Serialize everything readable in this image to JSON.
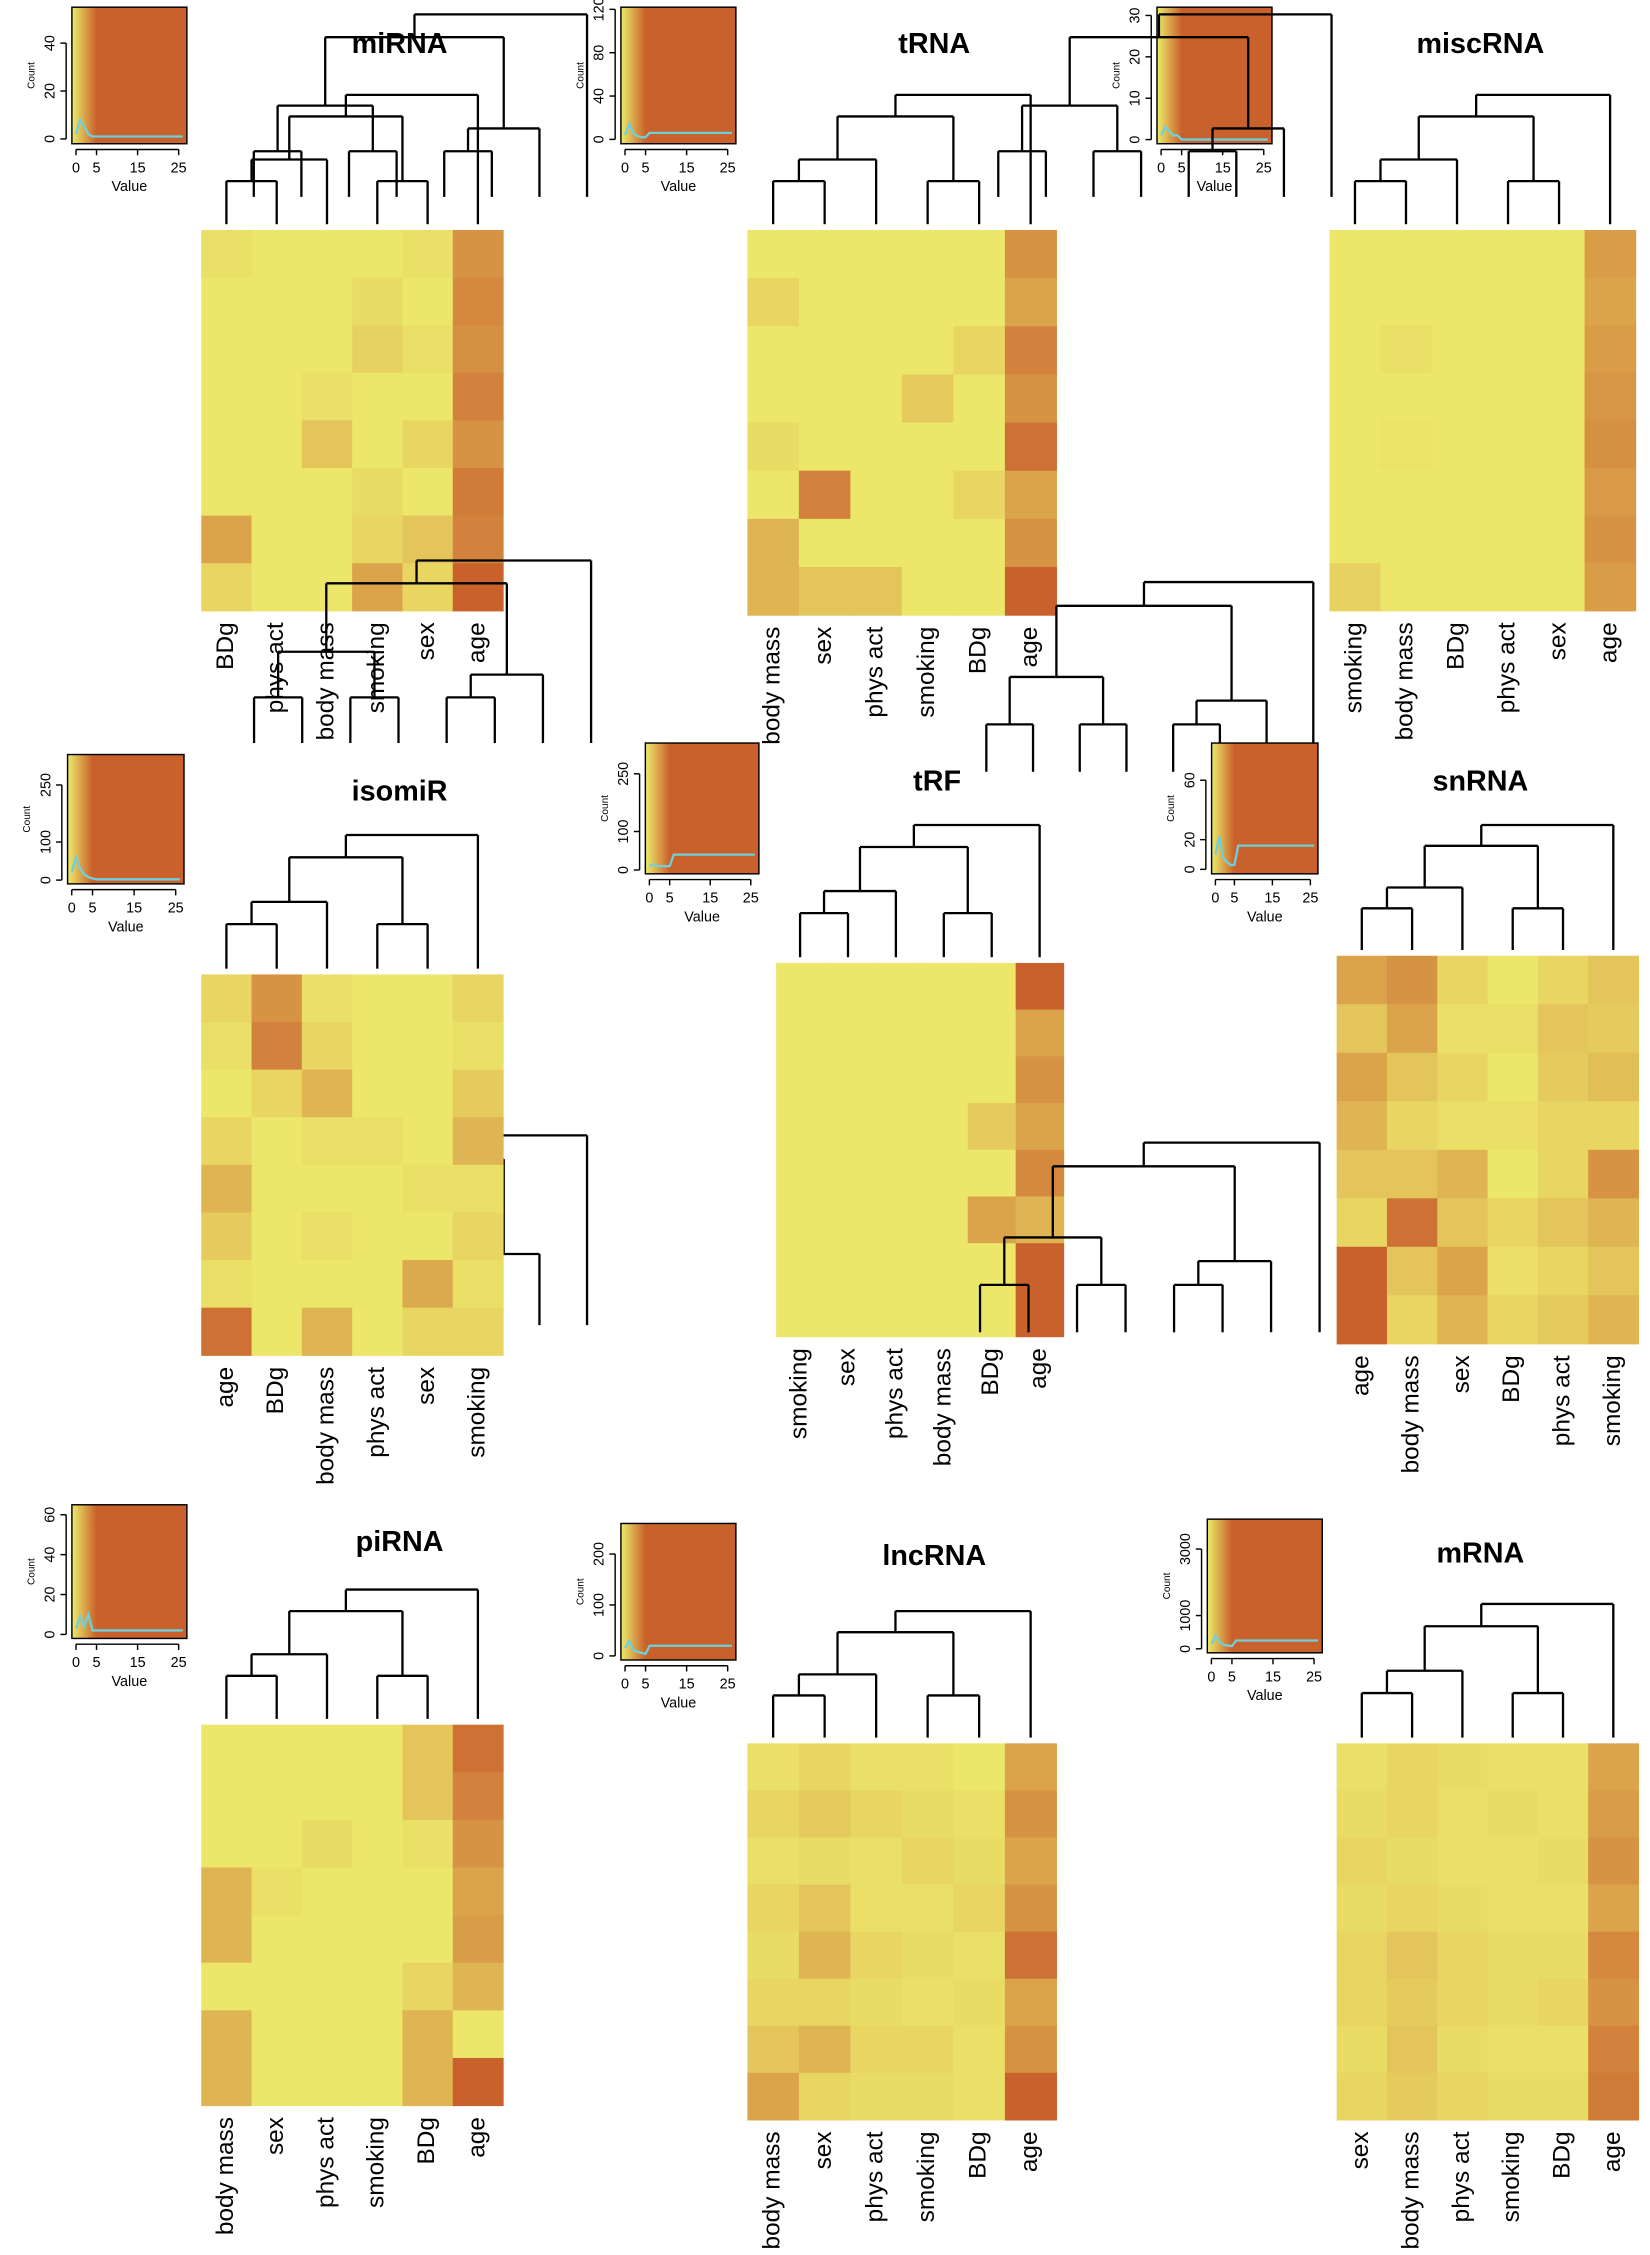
{
  "chart_data": [
    {
      "type": "heatmap",
      "title": "miRNA",
      "columns": [
        "BDg",
        "phys act",
        "body mass",
        "smoking",
        "sex",
        "age"
      ],
      "values": [
        [
          1.2,
          1,
          1,
          1,
          1.2,
          3.5
        ],
        [
          1,
          1,
          1,
          1.3,
          1,
          3.8
        ],
        [
          1,
          1,
          1,
          1.6,
          1.2,
          3.6
        ],
        [
          1,
          1,
          1.2,
          1,
          1,
          4
        ],
        [
          1,
          1,
          2,
          1,
          1.5,
          3.5
        ],
        [
          1,
          1,
          1,
          1.3,
          1,
          4.2
        ],
        [
          3,
          1,
          1,
          1.5,
          2,
          4
        ],
        [
          1.5,
          1,
          1,
          3,
          1.5,
          5
        ]
      ],
      "key": {
        "xlabel": "Value",
        "ylabel": "Count",
        "xlim": [
          -1,
          27
        ],
        "xticks": [
          0,
          5,
          15,
          25
        ],
        "ylim": [
          -2,
          55
        ],
        "yticks": [
          0,
          20,
          40
        ],
        "x": [
          0,
          1,
          2,
          3,
          4,
          5,
          6,
          26
        ],
        "values": [
          2,
          8,
          5,
          2,
          1,
          1,
          1,
          1
        ],
        "color": "#6fd0dc"
      }
    },
    {
      "type": "heatmap",
      "title": "tRNA",
      "columns": [
        "body mass",
        "sex",
        "phys act",
        "smoking",
        "BDg",
        "age"
      ],
      "values": [
        [
          1,
          1,
          1,
          1,
          1,
          3.5
        ],
        [
          1.5,
          1,
          1,
          1,
          1,
          3
        ],
        [
          1,
          1,
          1,
          1,
          1.5,
          4
        ],
        [
          1,
          1,
          1,
          1.8,
          1,
          3.5
        ],
        [
          1.3,
          1,
          1,
          1,
          1,
          4.5
        ],
        [
          1,
          4,
          1,
          1,
          1.5,
          3
        ],
        [
          2.5,
          1,
          1,
          1,
          1,
          3.5
        ],
        [
          2.5,
          2,
          2,
          1,
          1,
          5
        ]
      ],
      "key": {
        "xlabel": "Value",
        "ylabel": "Count",
        "xlim": [
          -1,
          27
        ],
        "xticks": [
          0,
          5,
          15,
          25
        ],
        "ylim": [
          -4,
          122
        ],
        "yticks": [
          0,
          40,
          80,
          120
        ],
        "x": [
          0,
          1,
          2,
          3,
          4,
          5,
          6,
          26
        ],
        "values": [
          4,
          14,
          6,
          3,
          2,
          2,
          6,
          6
        ],
        "color": "#6fd0dc"
      }
    },
    {
      "type": "heatmap",
      "title": "miscRNA",
      "columns": [
        "smoking",
        "body mass",
        "BDg",
        "phys act",
        "sex",
        "age"
      ],
      "values": [
        [
          1,
          1,
          1,
          1,
          1,
          3.2
        ],
        [
          1,
          1,
          1,
          1,
          1,
          3
        ],
        [
          1,
          1.2,
          1,
          1,
          1,
          3.2
        ],
        [
          1,
          1,
          1,
          1,
          1,
          3.4
        ],
        [
          1,
          1.1,
          1,
          1,
          1,
          3.6
        ],
        [
          1,
          1,
          1,
          1,
          1,
          3.3
        ],
        [
          1,
          1,
          1,
          1,
          1,
          3.5
        ],
        [
          1.6,
          1,
          1,
          1,
          1,
          3.2
        ]
      ],
      "key": {
        "xlabel": "Value",
        "ylabel": "Count",
        "xlim": [
          -1,
          27
        ],
        "xticks": [
          0,
          5,
          15,
          25
        ],
        "ylim": [
          -1,
          32
        ],
        "yticks": [
          0,
          10,
          20,
          30
        ],
        "x": [
          0,
          1,
          2,
          3,
          4,
          5,
          6,
          26
        ],
        "values": [
          1,
          3,
          2,
          1,
          1,
          0,
          0,
          0
        ],
        "color": "#6fd0dc"
      }
    },
    {
      "type": "heatmap",
      "title": "isomiR",
      "columns": [
        "age",
        "BDg",
        "body mass",
        "phys act",
        "sex",
        "smoking"
      ],
      "values": [
        [
          1.5,
          3.5,
          1.2,
          1,
          1,
          1.5
        ],
        [
          1.2,
          4,
          1.5,
          1,
          1,
          1.2
        ],
        [
          1,
          1.5,
          2.5,
          1,
          1,
          1.8
        ],
        [
          1.5,
          1,
          1.2,
          1.2,
          1,
          2.5
        ],
        [
          2.5,
          1,
          1,
          1,
          1.2,
          1.2
        ],
        [
          1.8,
          1,
          1.2,
          1,
          1,
          1.5
        ],
        [
          1.2,
          1,
          1,
          1,
          2.8,
          1.2
        ],
        [
          4.5,
          1,
          2.5,
          1,
          1.5,
          1.5
        ]
      ],
      "key": {
        "xlabel": "Value",
        "ylabel": "Count",
        "xlim": [
          -1,
          27
        ],
        "xticks": [
          0,
          5,
          15,
          25
        ],
        "ylim": [
          -10,
          330
        ],
        "yticks": [
          0,
          100,
          250
        ],
        "x": [
          0,
          1,
          2,
          3,
          4,
          5,
          6,
          26
        ],
        "values": [
          20,
          60,
          30,
          15,
          8,
          4,
          2,
          2
        ],
        "color": "#6fd0dc"
      }
    },
    {
      "type": "heatmap",
      "title": "tRF",
      "columns": [
        "smoking",
        "sex",
        "phys act",
        "body mass",
        "BDg",
        "age"
      ],
      "values": [
        [
          1,
          1,
          1,
          1,
          1,
          5
        ],
        [
          1,
          1,
          1,
          1,
          1,
          3
        ],
        [
          1,
          1,
          1,
          1,
          1,
          3.5
        ],
        [
          1,
          1,
          1,
          1,
          1.8,
          3
        ],
        [
          1,
          1,
          1,
          1,
          1,
          3.8
        ],
        [
          1,
          1,
          1,
          1,
          3,
          2.5
        ],
        [
          1,
          1,
          1,
          1,
          1,
          5
        ],
        [
          1,
          1,
          1,
          1,
          1,
          5
        ]
      ],
      "key": {
        "xlabel": "Value",
        "ylabel": "Count",
        "xlim": [
          -1,
          27
        ],
        "xticks": [
          0,
          5,
          15,
          25
        ],
        "ylim": [
          -10,
          330
        ],
        "yticks": [
          0,
          100,
          250
        ],
        "x": [
          0,
          1,
          2,
          3,
          4,
          5,
          6,
          26
        ],
        "values": [
          10,
          15,
          10,
          10,
          10,
          10,
          40,
          40
        ],
        "color": "#6fd0dc"
      }
    },
    {
      "type": "heatmap",
      "title": "snRNA",
      "columns": [
        "age",
        "body mass",
        "sex",
        "BDg",
        "phys act",
        "smoking"
      ],
      "values": [
        [
          3,
          3.5,
          1.5,
          1,
          1.5,
          2
        ],
        [
          2,
          3,
          1.2,
          1.2,
          2,
          1.8
        ],
        [
          3,
          2,
          1.5,
          1,
          1.8,
          2.2
        ],
        [
          2.5,
          1.5,
          1.2,
          1.2,
          1.5,
          1.5
        ],
        [
          2,
          2,
          2.5,
          1,
          1.5,
          3.5
        ],
        [
          1.5,
          4.5,
          2,
          1.5,
          2,
          2.5
        ],
        [
          5,
          2,
          3,
          1.2,
          1.5,
          2
        ],
        [
          5,
          1.5,
          2.5,
          1.5,
          1.8,
          2.5
        ]
      ],
      "key": {
        "xlabel": "Value",
        "ylabel": "Count",
        "xlim": [
          -1,
          27
        ],
        "xticks": [
          0,
          5,
          15,
          25
        ],
        "ylim": [
          -3,
          85
        ],
        "yticks": [
          0,
          20,
          60
        ],
        "x": [
          0,
          1,
          2,
          3,
          4,
          5,
          6,
          26
        ],
        "values": [
          10,
          22,
          8,
          5,
          3,
          3,
          16,
          16
        ],
        "color": "#6fd0dc"
      }
    },
    {
      "type": "heatmap",
      "title": "piRNA",
      "columns": [
        "body mass",
        "sex",
        "phys act",
        "smoking",
        "BDg",
        "age"
      ],
      "values": [
        [
          1,
          1,
          1,
          1,
          2,
          4.5
        ],
        [
          1,
          1,
          1,
          1,
          2,
          4
        ],
        [
          1,
          1,
          1.3,
          1,
          1.2,
          3.5
        ],
        [
          2.5,
          1.2,
          1,
          1,
          1,
          3
        ],
        [
          2.5,
          1,
          1,
          1,
          1,
          3.2
        ],
        [
          1,
          1,
          1,
          1,
          1.5,
          2.5
        ],
        [
          2.5,
          1,
          1,
          1,
          2.5,
          1
        ],
        [
          2.5,
          1,
          1,
          1,
          2.5,
          5
        ]
      ],
      "key": {
        "xlabel": "Value",
        "ylabel": "Count",
        "xlim": [
          -1,
          27
        ],
        "xticks": [
          0,
          5,
          15,
          25
        ],
        "ylim": [
          -2,
          65
        ],
        "yticks": [
          0,
          20,
          40,
          60
        ],
        "x": [
          0,
          1,
          2,
          3,
          4,
          5,
          6,
          26
        ],
        "values": [
          3,
          9,
          4,
          10,
          2,
          2,
          2,
          2
        ],
        "color": "#6fd0dc"
      }
    },
    {
      "type": "heatmap",
      "title": "lncRNA",
      "columns": [
        "body mass",
        "sex",
        "phys act",
        "smoking",
        "BDg",
        "age"
      ],
      "values": [
        [
          1.2,
          1.5,
          1.2,
          1.2,
          1,
          3
        ],
        [
          1.5,
          1.8,
          1.5,
          1.3,
          1.2,
          3.5
        ],
        [
          1.2,
          1.3,
          1.2,
          1.5,
          1.3,
          3
        ],
        [
          1.5,
          2,
          1.2,
          1.2,
          1.5,
          3.5
        ],
        [
          1.3,
          2.5,
          1.5,
          1.3,
          1.2,
          4.5
        ],
        [
          1.5,
          1.5,
          1.3,
          1.2,
          1.3,
          3
        ],
        [
          2,
          2.5,
          1.5,
          1.5,
          1.2,
          3.5
        ],
        [
          3,
          1.5,
          1.3,
          1.3,
          1.2,
          5
        ]
      ],
      "key": {
        "xlabel": "Value",
        "ylabel": "Count",
        "xlim": [
          -1,
          27
        ],
        "xticks": [
          0,
          5,
          15,
          25
        ],
        "ylim": [
          -8,
          260
        ],
        "yticks": [
          0,
          100,
          200
        ],
        "x": [
          0,
          1,
          2,
          3,
          4,
          5,
          6,
          26
        ],
        "values": [
          15,
          30,
          12,
          8,
          6,
          4,
          20,
          20
        ],
        "color": "#6fd0dc"
      }
    },
    {
      "type": "heatmap",
      "title": "mRNA",
      "columns": [
        "sex",
        "body mass",
        "phys act",
        "smoking",
        "BDg",
        "age"
      ],
      "values": [
        [
          1.2,
          1.5,
          1.3,
          1.2,
          1.2,
          3
        ],
        [
          1.3,
          1.5,
          1.2,
          1.3,
          1.2,
          3.2
        ],
        [
          1.5,
          1.3,
          1.2,
          1.2,
          1.3,
          3.5
        ],
        [
          1.3,
          1.5,
          1.3,
          1.2,
          1.2,
          3
        ],
        [
          1.5,
          2,
          1.5,
          1.3,
          1.3,
          3.8
        ],
        [
          1.5,
          1.8,
          1.5,
          1.3,
          1.5,
          3.5
        ],
        [
          1.3,
          2,
          1.3,
          1.2,
          1.2,
          4
        ],
        [
          1.5,
          1.8,
          1.5,
          1.3,
          1.3,
          4.2
        ]
      ],
      "key": {
        "xlabel": "Value",
        "ylabel": "Count",
        "xlim": [
          -1,
          27
        ],
        "xticks": [
          0,
          5,
          15,
          25
        ],
        "ylim": [
          -120,
          3900
        ],
        "yticks": [
          0,
          1000,
          3000
        ],
        "x": [
          0,
          1,
          2,
          3,
          4,
          5,
          6,
          26
        ],
        "values": [
          150,
          400,
          200,
          120,
          100,
          80,
          250,
          250
        ],
        "color": "#6fd0dc"
      }
    }
  ]
}
